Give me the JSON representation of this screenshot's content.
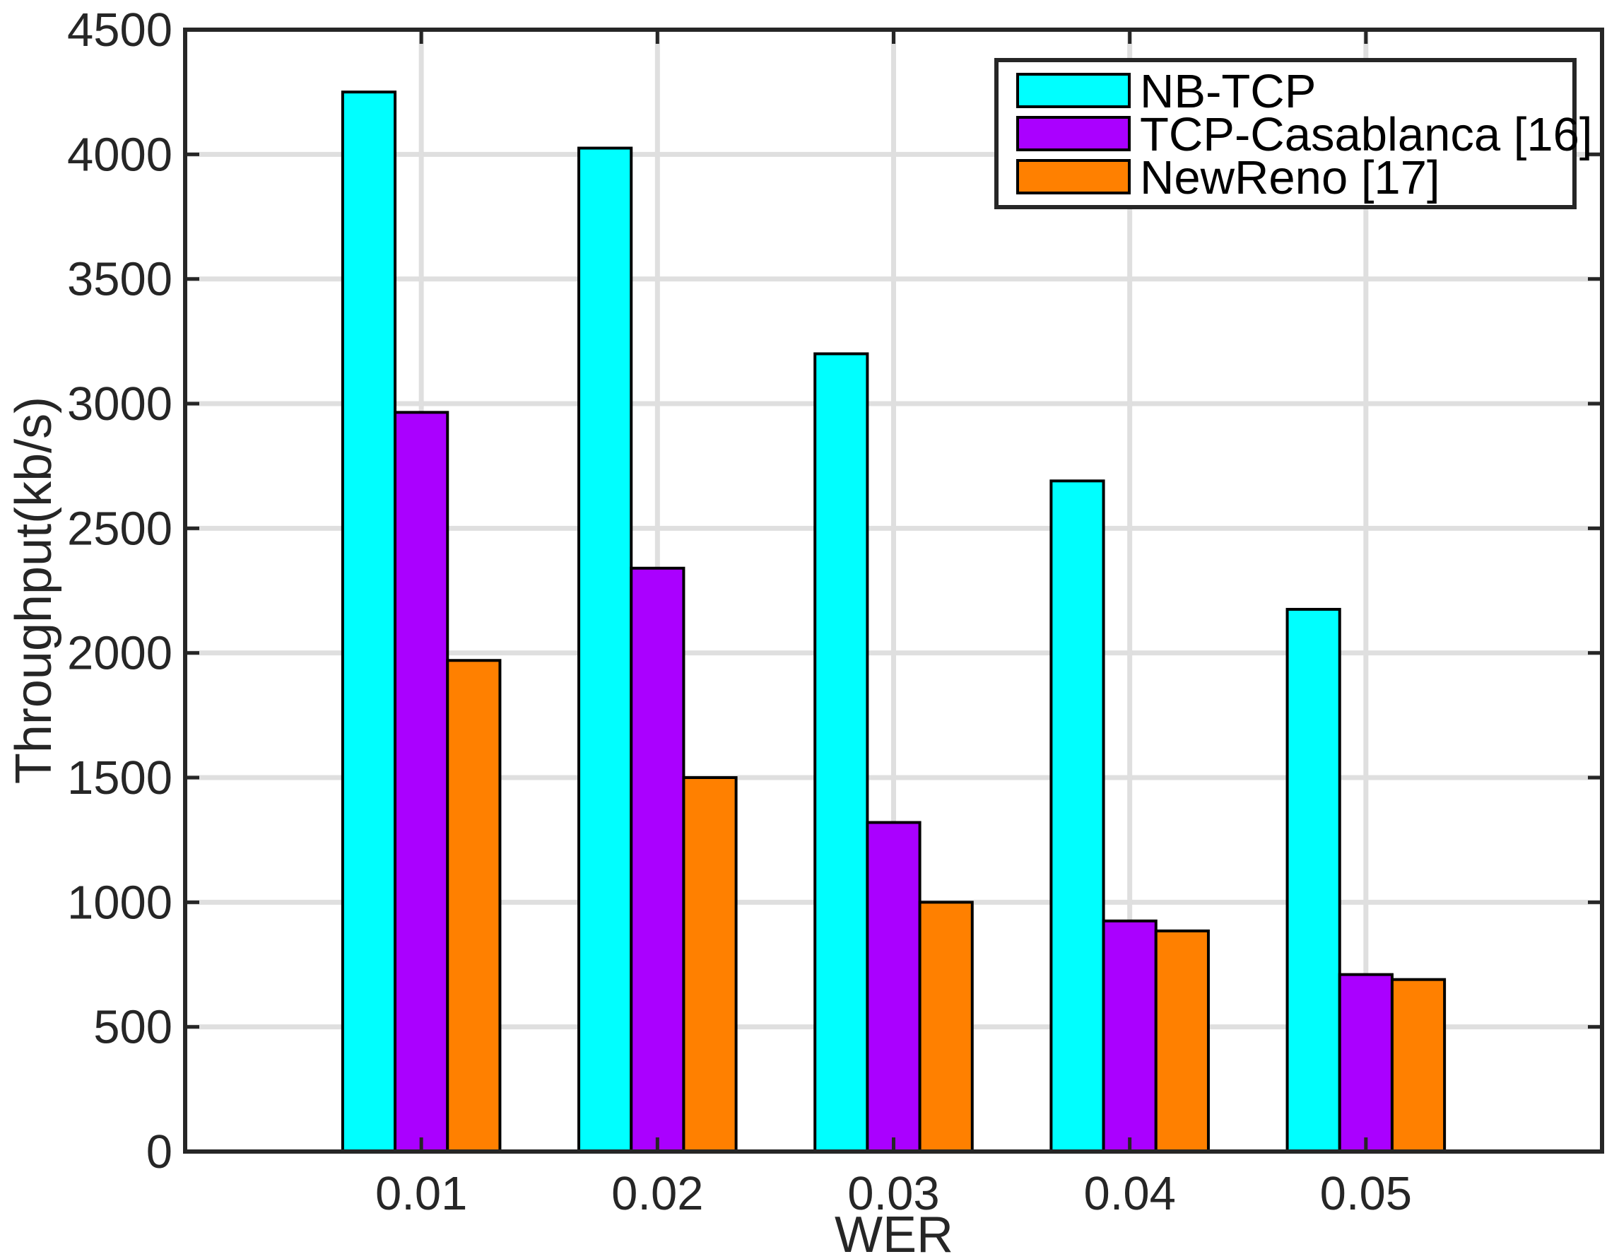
{
  "chart_data": {
    "type": "bar",
    "xlabel": "WER",
    "ylabel": "Throughput(kb/s)",
    "categories": [
      "0.01",
      "0.02",
      "0.03",
      "0.04",
      "0.05"
    ],
    "ylim": [
      0,
      4500
    ],
    "yticks": [
      "0",
      "500",
      "1000",
      "1500",
      "2000",
      "2500",
      "3000",
      "3500",
      "4000",
      "4500"
    ],
    "xlim": [
      0,
      6
    ],
    "category_positions": [
      1,
      2,
      3,
      4,
      5
    ],
    "grid": true,
    "legend_position": "top-right",
    "series": [
      {
        "name": "NB-TCP",
        "color": "#00ffff",
        "values": [
          4250,
          4025,
          3200,
          2690,
          2175
        ]
      },
      {
        "name": "TCP-Casablanca [16]",
        "color": "#aa00ff",
        "values": [
          2965,
          2340,
          1320,
          925,
          710
        ]
      },
      {
        "name": "NewReno [17]",
        "color": "#ff8000",
        "values": [
          1970,
          1500,
          1000,
          885,
          690
        ]
      }
    ]
  }
}
